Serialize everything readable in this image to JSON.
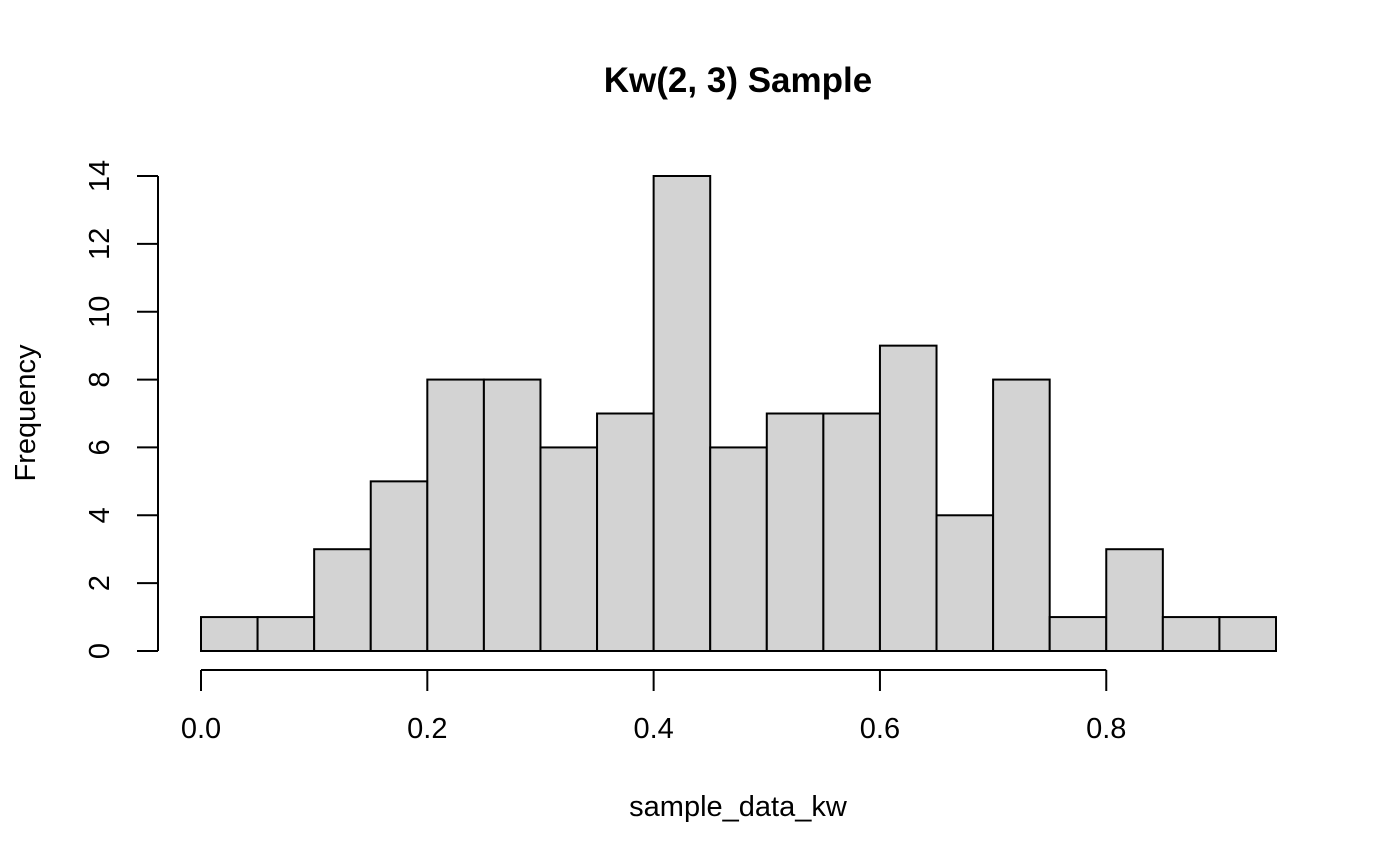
{
  "chart_data": {
    "type": "bar",
    "title": "Kw(2, 3) Sample",
    "xlabel": "sample_data_kw",
    "ylabel": "Frequency",
    "bin_edges": [
      0.0,
      0.05,
      0.1,
      0.15,
      0.2,
      0.25,
      0.3,
      0.35,
      0.4,
      0.45,
      0.5,
      0.55,
      0.6,
      0.65,
      0.7,
      0.75,
      0.8,
      0.85,
      0.9,
      0.95
    ],
    "values": [
      1,
      1,
      3,
      5,
      8,
      8,
      6,
      7,
      14,
      6,
      7,
      7,
      9,
      4,
      8,
      1,
      3,
      1,
      1
    ],
    "xlim": [
      0.0,
      0.95
    ],
    "ylim": [
      0,
      14
    ],
    "x_ticks": [
      "0.0",
      "0.2",
      "0.4",
      "0.6",
      "0.8"
    ],
    "y_ticks": [
      "0",
      "2",
      "4",
      "6",
      "8",
      "10",
      "12",
      "14"
    ],
    "bar_fill": "#d3d3d3",
    "bar_stroke": "#000000",
    "grid": false,
    "legend": "none"
  }
}
